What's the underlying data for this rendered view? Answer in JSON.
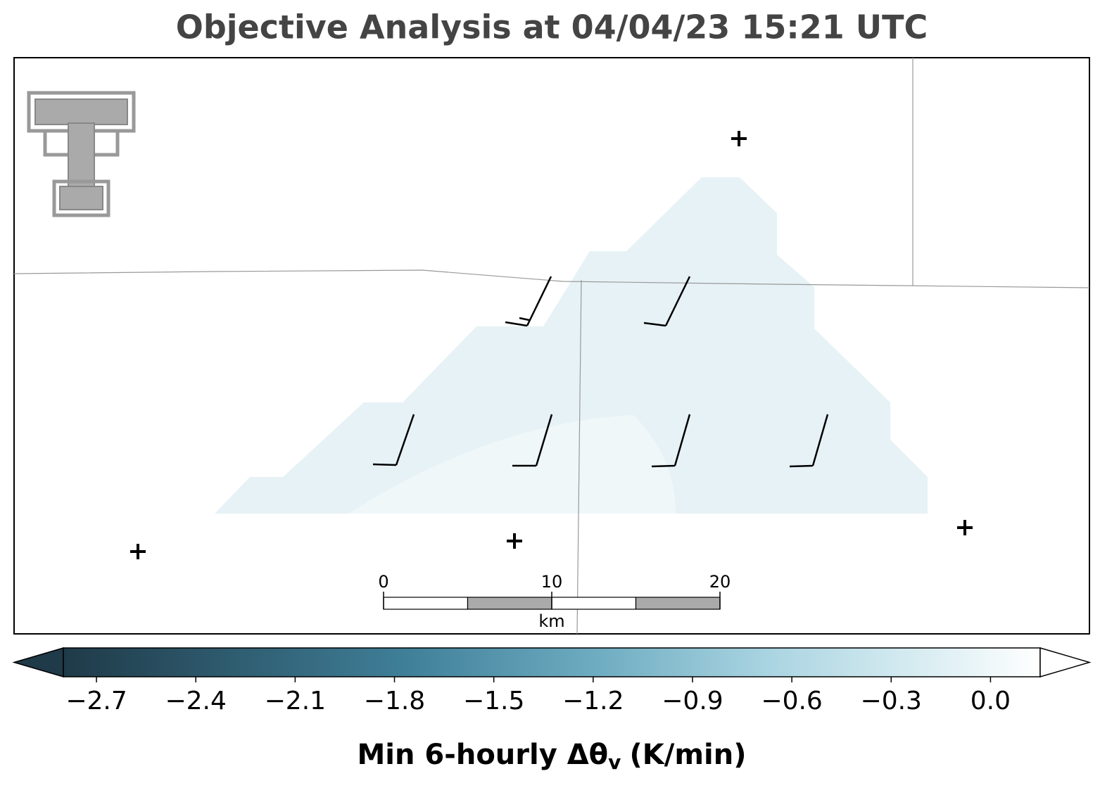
{
  "title": "Objective Analysis at 04/04/23 15:21 UTC",
  "scale_bar": {
    "ticks": [
      0,
      10,
      20
    ],
    "unit": "km"
  },
  "colorbar": {
    "lim": [
      -2.8,
      0.15
    ],
    "ticks": [
      {
        "value": -2.7,
        "label": "−2.7"
      },
      {
        "value": -2.4,
        "label": "−2.4"
      },
      {
        "value": -2.1,
        "label": "−2.1"
      },
      {
        "value": -1.8,
        "label": "−1.8"
      },
      {
        "value": -1.5,
        "label": "−1.5"
      },
      {
        "value": -1.2,
        "label": "−1.2"
      },
      {
        "value": -0.9,
        "label": "−0.9"
      },
      {
        "value": -0.6,
        "label": "−0.6"
      },
      {
        "value": -0.3,
        "label": "−0.3"
      },
      {
        "value": 0,
        "label": "0.0"
      }
    ],
    "label": {
      "main": "Min 6-hourly Δθ",
      "subscript": "v",
      "unit": "(K/min)"
    }
  }
}
